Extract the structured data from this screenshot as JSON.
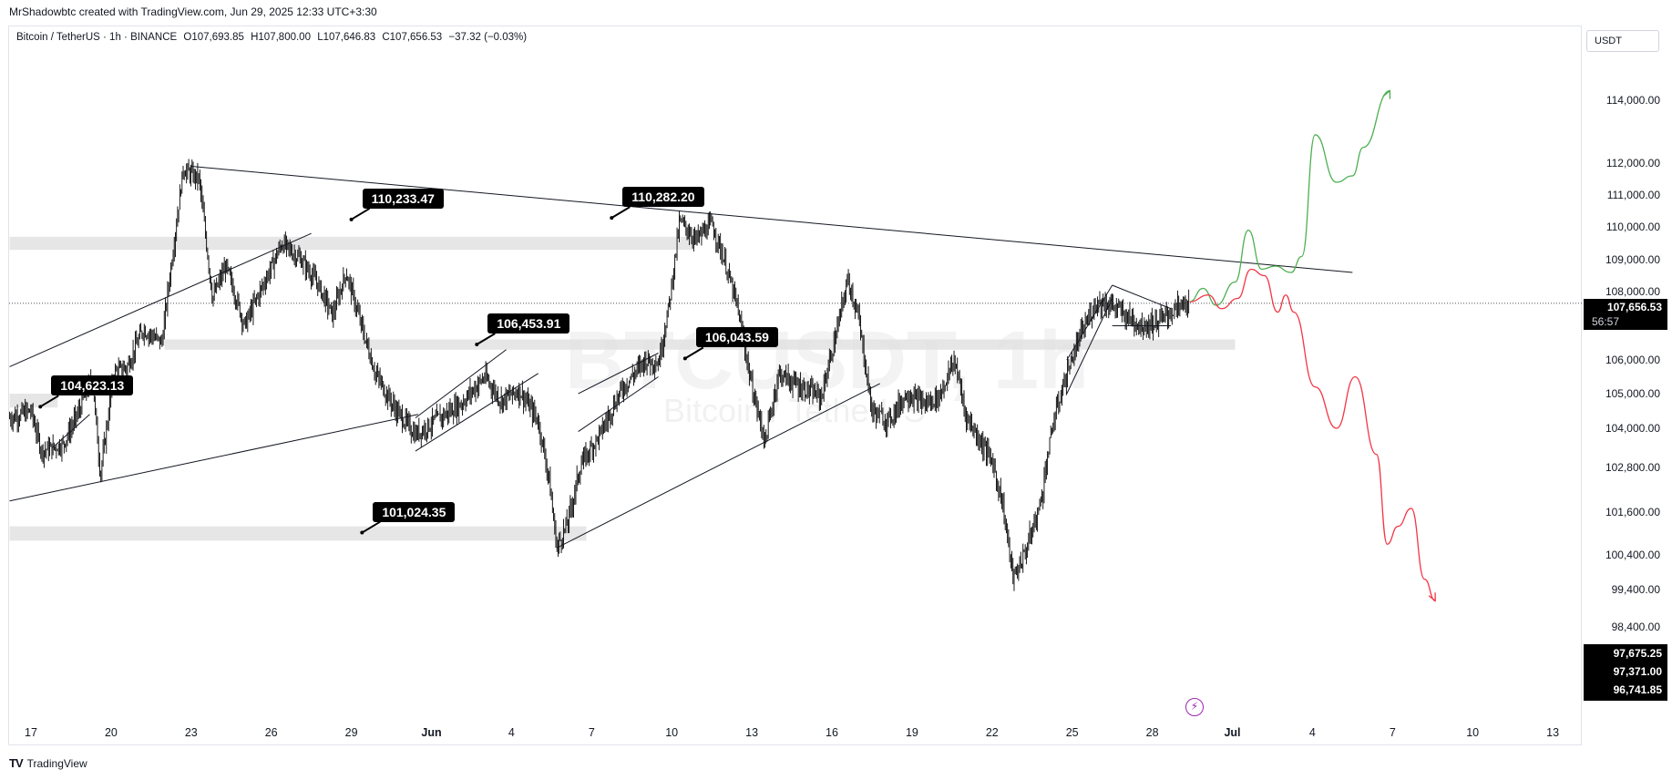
{
  "header": {
    "credit": "MrShadowbtc created with TradingView.com, Jun 29, 2025 12:33 UTC+3:30"
  },
  "legend": {
    "symbol": "Bitcoin / TetherUS · 1h · BINANCE",
    "open": "O107,693.85",
    "high": "H107,800.00",
    "low": "L107,646.83",
    "close": "C107,656.53",
    "change": "−37.32 (−0.03%)"
  },
  "currency_label": "USDT",
  "watermark": {
    "ticker": "BTCUSDT, 1h",
    "name": "Bitcoin / TetherUS"
  },
  "price_scale": {
    "current_price": "107,656.53",
    "countdown": "56:57",
    "low_labels": [
      "97,675.25",
      "97,371.00",
      "96,741.85"
    ]
  },
  "annotations": [
    {
      "label": "104,623.13",
      "price": 104623.13,
      "t": 0.35
    },
    {
      "label": "110,233.47",
      "price": 110233.47,
      "t": 12.0
    },
    {
      "label": "101,024.35",
      "price": 101024.35,
      "t": 12.4
    },
    {
      "label": "106,453.91",
      "price": 106453.91,
      "t": 16.7
    },
    {
      "label": "110,282.20",
      "price": 110282.2,
      "t": 21.75
    },
    {
      "label": "106,043.59",
      "price": 106043.59,
      "t": 24.5
    }
  ],
  "brand": "TradingView",
  "colors": {
    "bullish_path": "#4caf50",
    "bearish_path": "#f23645",
    "zones": "#e0e0e0",
    "candles": "#000000",
    "lightning": "#9c27b0"
  },
  "chart_data": {
    "type": "candlestick",
    "title": "Bitcoin / TetherUS · 1h · BINANCE",
    "timeframe": "1h",
    "x_ticks": [
      {
        "label": "17",
        "t": 0
      },
      {
        "label": "20",
        "t": 3
      },
      {
        "label": "23",
        "t": 6
      },
      {
        "label": "26",
        "t": 9
      },
      {
        "label": "29",
        "t": 12
      },
      {
        "label": "Jun",
        "t": 15
      },
      {
        "label": "4",
        "t": 18
      },
      {
        "label": "7",
        "t": 21
      },
      {
        "label": "10",
        "t": 24
      },
      {
        "label": "13",
        "t": 27
      },
      {
        "label": "16",
        "t": 30
      },
      {
        "label": "19",
        "t": 33
      },
      {
        "label": "22",
        "t": 36
      },
      {
        "label": "25",
        "t": 39
      },
      {
        "label": "28",
        "t": 42
      },
      {
        "label": "Jul",
        "t": 45
      },
      {
        "label": "4",
        "t": 48
      },
      {
        "label": "7",
        "t": 51
      },
      {
        "label": "10",
        "t": 54
      },
      {
        "label": "13",
        "t": 57
      }
    ],
    "y_ticks": [
      114000,
      112000,
      111000,
      110000,
      109000,
      108000,
      106000,
      105000,
      104000,
      102800,
      101600,
      100400,
      99400,
      98400
    ],
    "y_tick_labels": [
      "114,000.00",
      "112,000.00",
      "111,000.00",
      "110,000.00",
      "109,000.00",
      "108,000.00",
      "106,000.00",
      "105,000.00",
      "104,000.00",
      "102,800.00",
      "101,600.00",
      "100,400.00",
      "99,400.00",
      "98,400.00"
    ],
    "price_path": [
      [
        -0.8,
        104300
      ],
      [
        0.0,
        104500
      ],
      [
        0.4,
        103300
      ],
      [
        1.2,
        103500
      ],
      [
        1.8,
        104500
      ],
      [
        2.3,
        105500
      ],
      [
        2.6,
        102600
      ],
      [
        3.1,
        105600
      ],
      [
        3.6,
        105800
      ],
      [
        4.2,
        106900
      ],
      [
        4.9,
        106500
      ],
      [
        5.7,
        111800
      ],
      [
        6.3,
        111500
      ],
      [
        6.8,
        107800
      ],
      [
        7.3,
        108800
      ],
      [
        8.0,
        107000
      ],
      [
        8.8,
        108400
      ],
      [
        9.4,
        109500
      ],
      [
        10.1,
        109000
      ],
      [
        10.7,
        108300
      ],
      [
        11.3,
        107300
      ],
      [
        11.8,
        108600
      ],
      [
        12.3,
        107200
      ],
      [
        12.9,
        105600
      ],
      [
        13.6,
        104600
      ],
      [
        14.4,
        103800
      ],
      [
        15.3,
        104300
      ],
      [
        16.1,
        104700
      ],
      [
        17.0,
        105500
      ],
      [
        17.6,
        104800
      ],
      [
        18.3,
        105100
      ],
      [
        19.0,
        104200
      ],
      [
        19.4,
        102500
      ],
      [
        19.7,
        100600
      ],
      [
        20.1,
        101300
      ],
      [
        20.6,
        102900
      ],
      [
        21.3,
        103800
      ],
      [
        22.1,
        105100
      ],
      [
        23.0,
        106000
      ],
      [
        23.5,
        105900
      ],
      [
        23.9,
        107600
      ],
      [
        24.3,
        110200
      ],
      [
        24.9,
        109600
      ],
      [
        25.5,
        110100
      ],
      [
        26.0,
        108900
      ],
      [
        26.5,
        107400
      ],
      [
        27.0,
        105200
      ],
      [
        27.5,
        103600
      ],
      [
        28.0,
        105600
      ],
      [
        28.8,
        105200
      ],
      [
        29.6,
        104900
      ],
      [
        30.2,
        106900
      ],
      [
        30.6,
        108400
      ],
      [
        31.0,
        107200
      ],
      [
        31.5,
        104500
      ],
      [
        32.1,
        104200
      ],
      [
        32.8,
        105000
      ],
      [
        33.5,
        104700
      ],
      [
        34.0,
        104900
      ],
      [
        34.6,
        106000
      ],
      [
        35.0,
        104400
      ],
      [
        35.5,
        103700
      ],
      [
        36.0,
        103000
      ],
      [
        36.4,
        101800
      ],
      [
        36.8,
        99700
      ],
      [
        37.3,
        100600
      ],
      [
        37.8,
        101800
      ],
      [
        38.3,
        104200
      ],
      [
        38.8,
        105600
      ],
      [
        39.3,
        106700
      ],
      [
        39.9,
        107700
      ],
      [
        40.5,
        107600
      ],
      [
        41.0,
        107300
      ],
      [
        41.6,
        107000
      ],
      [
        42.2,
        107100
      ],
      [
        42.7,
        107400
      ],
      [
        43.1,
        107600
      ],
      [
        43.4,
        107700
      ]
    ],
    "bullish_projection": [
      [
        43.4,
        107700
      ],
      [
        43.9,
        108100
      ],
      [
        44.4,
        107600
      ],
      [
        45.1,
        108300
      ],
      [
        45.6,
        109900
      ],
      [
        46.1,
        108700
      ],
      [
        46.6,
        108800
      ],
      [
        47.2,
        108600
      ],
      [
        47.6,
        109100
      ],
      [
        48.1,
        112900
      ],
      [
        48.9,
        111400
      ],
      [
        49.5,
        111600
      ],
      [
        49.9,
        112500
      ],
      [
        50.9,
        114300
      ]
    ],
    "bearish_projection": [
      [
        43.4,
        107700
      ],
      [
        44.1,
        107900
      ],
      [
        44.6,
        107500
      ],
      [
        45.2,
        107800
      ],
      [
        45.7,
        108700
      ],
      [
        46.2,
        108500
      ],
      [
        46.7,
        107400
      ],
      [
        47.0,
        107900
      ],
      [
        47.3,
        107400
      ],
      [
        48.1,
        105200
      ],
      [
        48.9,
        104000
      ],
      [
        49.6,
        105500
      ],
      [
        50.4,
        103200
      ],
      [
        50.8,
        100700
      ],
      [
        51.2,
        101200
      ],
      [
        51.7,
        101700
      ],
      [
        52.2,
        99700
      ],
      [
        52.6,
        99100
      ]
    ],
    "trendlines": [
      {
        "from": [
          6.0,
          111900
        ],
        "to": [
          49.5,
          108600
        ]
      },
      {
        "from": [
          -0.8,
          105800
        ],
        "to": [
          10.5,
          109800
        ]
      },
      {
        "from": [
          -0.8,
          101900
        ],
        "to": [
          14.5,
          104400
        ]
      },
      {
        "from": [
          19.7,
          100600
        ],
        "to": [
          31.8,
          105300
        ]
      },
      {
        "from": [
          0.8,
          103400
        ],
        "to": [
          2.2,
          104400
        ]
      },
      {
        "from": [
          14.4,
          103300
        ],
        "to": [
          19.0,
          105600
        ]
      },
      {
        "from": [
          14.4,
          104300
        ],
        "to": [
          17.8,
          106300
        ]
      },
      {
        "from": [
          20.5,
          103900
        ],
        "to": [
          23.5,
          105500
        ]
      },
      {
        "from": [
          20.5,
          105000
        ],
        "to": [
          23.5,
          106200
        ]
      },
      {
        "from": [
          38.8,
          105000
        ],
        "to": [
          40.5,
          107800
        ]
      },
      {
        "from": [
          38.8,
          106000
        ],
        "to": [
          40.5,
          108200
        ]
      },
      {
        "from": [
          40.5,
          108200
        ],
        "to": [
          42.7,
          107500
        ]
      },
      {
        "from": [
          40.5,
          107000
        ],
        "to": [
          42.7,
          107000
        ]
      }
    ],
    "zones": [
      {
        "from_t": -0.8,
        "to_t": 24.8,
        "y_top": 109700,
        "y_bottom": 109300
      },
      {
        "from_t": 5.0,
        "to_t": 45.1,
        "y_top": 106600,
        "y_bottom": 106300
      },
      {
        "from_t": -0.8,
        "to_t": 1.0,
        "y_top": 105000,
        "y_bottom": 104600
      },
      {
        "from_t": -0.8,
        "to_t": 20.8,
        "y_top": 101200,
        "y_bottom": 100800
      }
    ],
    "current_price": 107656.53,
    "ylim": [
      96600,
      114800
    ]
  }
}
